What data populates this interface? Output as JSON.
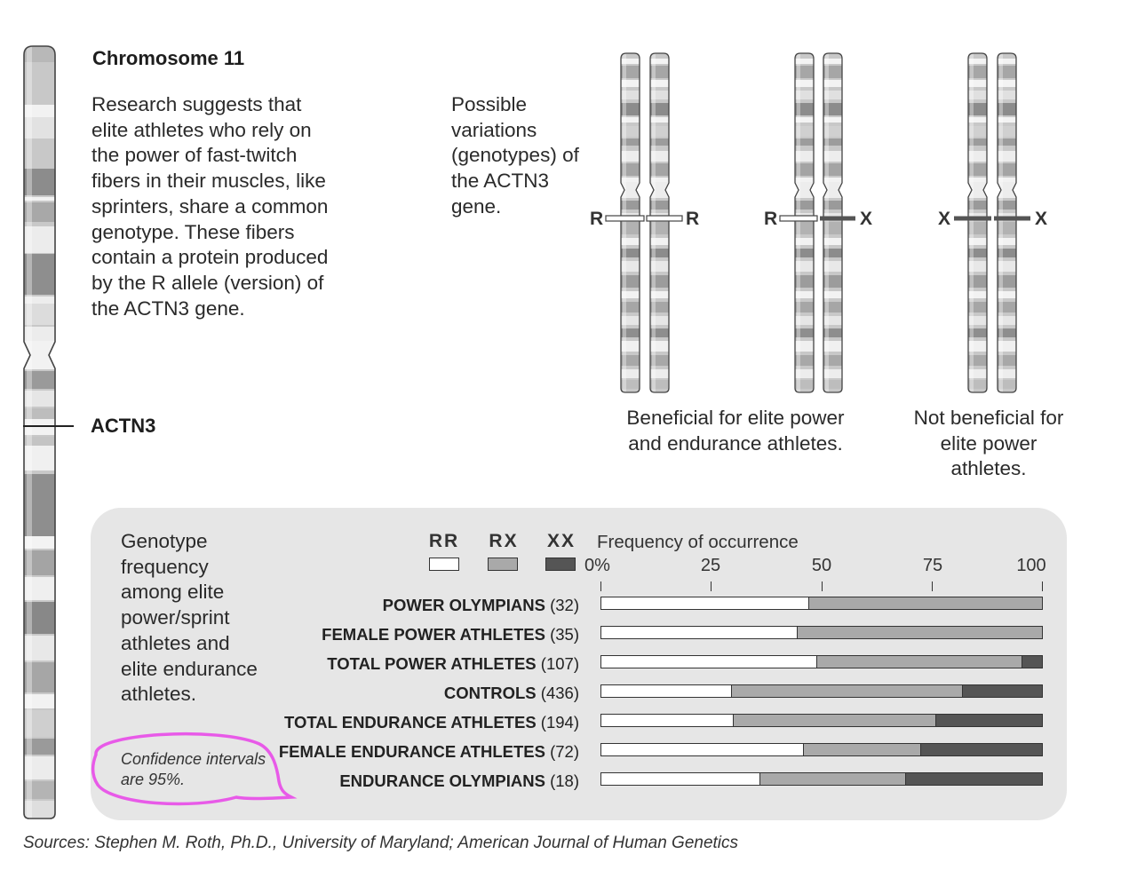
{
  "chromosome": {
    "title": "Chromosome 11",
    "description": "Research suggests that elite athletes who rely on the power of fast-twitch fibers in their muscles, like sprinters, share a common genotype. These fibers contain a protein produced by the R allele (version) of the ACTN3 gene.",
    "gene_label": "ACTN3"
  },
  "genotypes": {
    "intro": "Possible variations (genotypes) of the ACTN3 gene.",
    "pairs": [
      {
        "left": "R",
        "right": "R"
      },
      {
        "left": "R",
        "right": "X"
      },
      {
        "left": "X",
        "right": "X"
      }
    ],
    "caption_beneficial": "Beneficial for elite power and endurance athletes.",
    "caption_not_beneficial": "Not beneficial for elite power athletes."
  },
  "panel": {
    "description": "Genotype frequency among elite power/sprint athletes and elite endurance athletes.",
    "confidence_note": "Confidence intervals are 95%."
  },
  "colors": {
    "RR": "#ffffff",
    "RX": "#a9a9a9",
    "XX": "#555555",
    "panel": "#e6e6e6",
    "highlight": "#e85ae8"
  },
  "chart_data": {
    "type": "bar",
    "stacked": true,
    "orientation": "horizontal",
    "title": "Frequency of occurrence",
    "xlim": [
      0,
      100
    ],
    "x_ticks": [
      "0%",
      "25",
      "50",
      "75",
      "100"
    ],
    "legend": [
      "RR",
      "RX",
      "XX"
    ],
    "categories": [
      {
        "name": "POWER OLYMPIANS",
        "n": "(32)"
      },
      {
        "name": "FEMALE POWER ATHLETES",
        "n": "(35)"
      },
      {
        "name": "TOTAL POWER ATHLETES",
        "n": "(107)"
      },
      {
        "name": "CONTROLS",
        "n": "(436)"
      },
      {
        "name": "TOTAL ENDURANCE ATHLETES",
        "n": "(194)"
      },
      {
        "name": "FEMALE ENDURANCE ATHLETES",
        "n": "(72)"
      },
      {
        "name": "ENDURANCE OLYMPIANS",
        "n": "(18)"
      }
    ],
    "series": [
      {
        "name": "RR",
        "values": [
          47,
          44.5,
          49,
          29.5,
          30,
          46,
          36
        ]
      },
      {
        "name": "RX",
        "values": [
          53,
          55.5,
          46.5,
          52.5,
          46,
          26.5,
          33
        ]
      },
      {
        "name": "XX",
        "values": [
          0,
          0,
          4.5,
          18,
          24,
          27.5,
          31
        ]
      }
    ]
  },
  "sources": "Sources: Stephen M. Roth, Ph.D., University of Maryland; American Journal of Human Genetics"
}
